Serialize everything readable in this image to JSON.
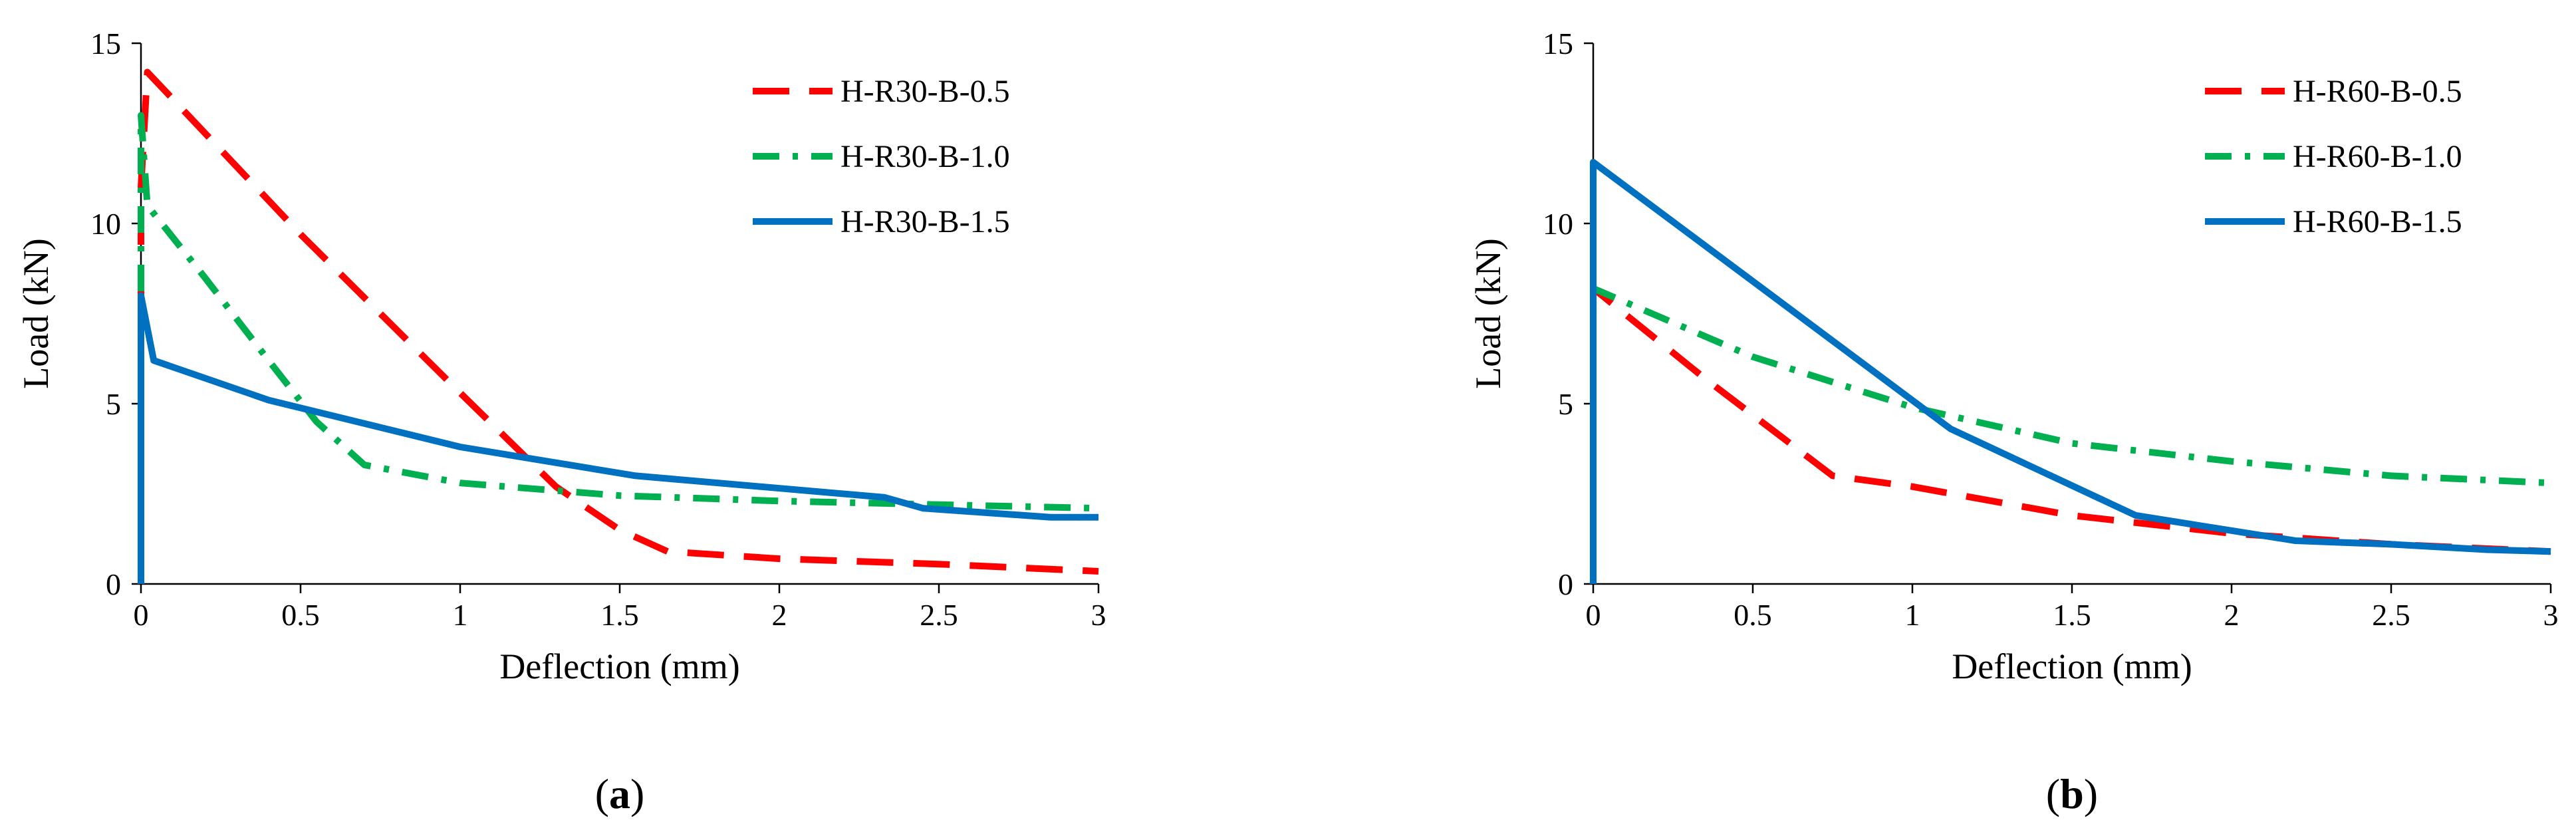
{
  "chart_data": [
    {
      "type": "line",
      "panel_label": "a",
      "title": "",
      "xlabel": "Deflection (mm)",
      "ylabel": "Load (kN)",
      "xlim": [
        0,
        3
      ],
      "ylim": [
        0,
        15
      ],
      "x_ticks": [
        "0",
        "0.5",
        "1",
        "1.5",
        "2",
        "2.5",
        "3"
      ],
      "y_ticks": [
        "0",
        "5",
        "10",
        "15"
      ],
      "grid": false,
      "legend_position": "top-right",
      "series": [
        {
          "name": "H-R30-B-0.5",
          "color": "#ff0000",
          "style": "dashed",
          "x": [
            0,
            0,
            0.02,
            0.5,
            1.0,
            1.3,
            1.5,
            1.65,
            2.0,
            2.5,
            3.0
          ],
          "y": [
            0,
            11.0,
            14.2,
            9.7,
            5.3,
            2.7,
            1.5,
            0.9,
            0.7,
            0.55,
            0.35
          ]
        },
        {
          "name": "H-R30-B-1.0",
          "color": "#00b050",
          "style": "dash-dot",
          "x": [
            0,
            0,
            0.02,
            0.2,
            0.4,
            0.55,
            0.7,
            1.0,
            1.5,
            2.0,
            2.5,
            3.0
          ],
          "y": [
            0,
            13.0,
            10.5,
            8.5,
            6.2,
            4.5,
            3.3,
            2.8,
            2.45,
            2.3,
            2.2,
            2.1
          ]
        },
        {
          "name": "H-R30-B-1.5",
          "color": "#0070c0",
          "style": "solid",
          "x": [
            0,
            0,
            0.04,
            0.4,
            1.0,
            1.55,
            2.33,
            2.45,
            2.85,
            3.0
          ],
          "y": [
            0,
            8.0,
            6.2,
            5.1,
            3.8,
            3.0,
            2.4,
            2.1,
            1.85,
            1.85
          ]
        }
      ]
    },
    {
      "type": "line",
      "panel_label": "b",
      "title": "",
      "xlabel": "Deflection (mm)",
      "ylabel": "Load (kN)",
      "xlim": [
        0,
        3
      ],
      "ylim": [
        0,
        15
      ],
      "x_ticks": [
        "0",
        "0.5",
        "1",
        "1.5",
        "2",
        "2.5",
        "3"
      ],
      "y_ticks": [
        "0",
        "5",
        "10",
        "15"
      ],
      "grid": false,
      "legend_position": "top-right",
      "series": [
        {
          "name": "H-R60-B-0.5",
          "color": "#ff0000",
          "style": "dashed",
          "x": [
            0,
            0,
            0.35,
            0.75,
            1.0,
            1.5,
            2.0,
            2.5,
            3.0
          ],
          "y": [
            0,
            8.2,
            5.7,
            3.0,
            2.7,
            1.9,
            1.4,
            1.1,
            0.9
          ]
        },
        {
          "name": "H-R60-B-1.0",
          "color": "#00b050",
          "style": "dash-dot",
          "x": [
            0,
            0,
            0.5,
            1.0,
            1.5,
            2.0,
            2.5,
            3.0
          ],
          "y": [
            0,
            8.2,
            6.3,
            4.9,
            3.9,
            3.4,
            3.0,
            2.8
          ]
        },
        {
          "name": "H-R60-B-1.5",
          "color": "#0070c0",
          "style": "solid",
          "x": [
            0,
            0,
            1.12,
            1.7,
            2.2,
            2.5,
            2.8,
            3.0
          ],
          "y": [
            0,
            11.7,
            4.3,
            1.9,
            1.2,
            1.1,
            0.95,
            0.9
          ]
        }
      ]
    }
  ]
}
